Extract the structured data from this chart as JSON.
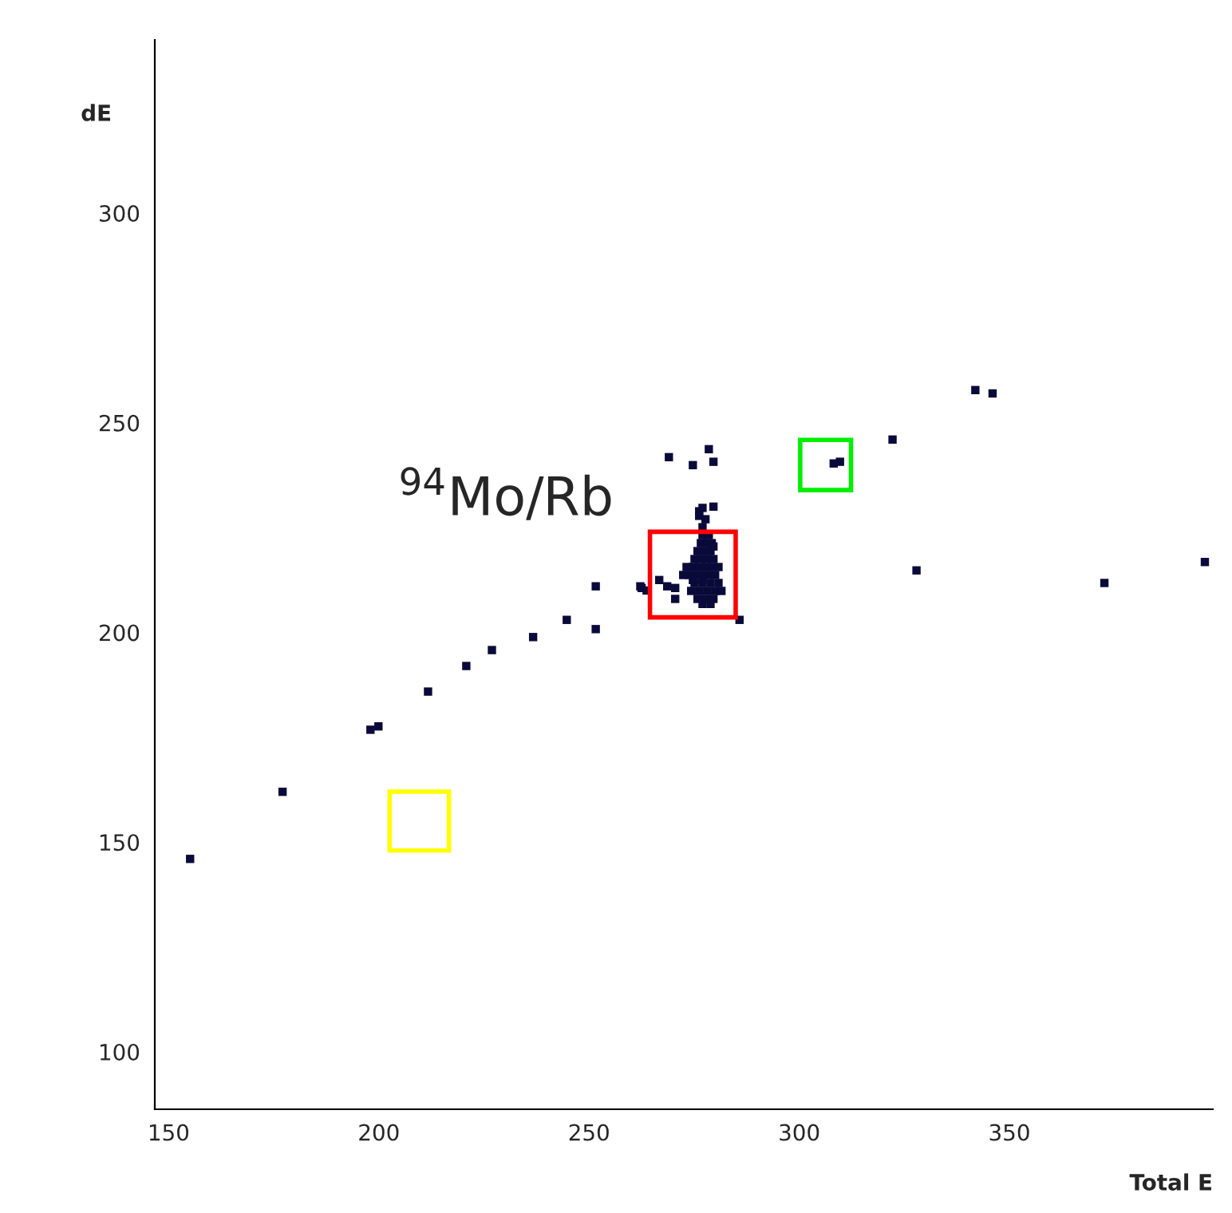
{
  "chart_data": {
    "type": "scatter",
    "xlabel": "Total E",
    "ylabel": "dE",
    "xlim": [
      146.7,
      398.4
    ],
    "ylim": [
      86.3,
      341.3
    ],
    "xticks": [
      150,
      200,
      250,
      300,
      350
    ],
    "yticks": [
      100,
      150,
      200,
      250,
      300
    ],
    "grid": false,
    "marker": "square",
    "annotations": [
      "$^{94}$Mo/Rb"
    ],
    "series": [
      {
        "color": "#0a0a3a",
        "x": [
          155.1,
          177.1,
          198.0,
          199.9,
          211.7,
          220.8,
          226.9,
          236.7,
          244.7,
          251.6,
          251.6,
          262.2,
          262.5,
          263.7,
          269.0,
          274.7,
          278.5,
          279.6,
          285.8,
          308.2,
          309.7,
          322.2,
          327.9,
          341.9,
          346.0,
          372.6,
          396.5,
          276.2,
          277.0,
          279.6,
          276.2,
          277.7,
          277.0,
          266.7,
          268.6,
          270.5,
          270.5,
          279.6,
          277.0,
          278.5,
          276.6,
          278.1,
          279.2,
          275.8,
          277.4,
          278.9,
          275.1,
          276.6,
          278.1,
          279.6,
          273.2,
          274.7,
          276.2,
          277.7,
          279.2,
          280.8,
          272.4,
          273.9,
          275.4,
          277.0,
          278.5,
          280.0,
          274.7,
          277.0,
          275.1,
          277.0,
          278.9,
          280.8,
          274.3,
          276.2,
          278.1,
          280.0,
          281.5,
          275.8,
          277.7,
          279.6,
          277.0,
          278.9
        ],
        "values": [
          146.0,
          162.0,
          176.8,
          177.6,
          185.9,
          192.0,
          195.8,
          198.9,
          203.0,
          211.0,
          200.8,
          211.0,
          210.6,
          210.0,
          241.8,
          239.9,
          243.7,
          240.7,
          203.0,
          240.3,
          240.7,
          246.0,
          214.8,
          257.8,
          257.0,
          211.8,
          216.8,
          228.9,
          229.7,
          230.0,
          227.8,
          227.0,
          225.1,
          212.5,
          211.0,
          208.0,
          210.6,
          220.5,
          223.2,
          223.2,
          221.3,
          221.3,
          221.3,
          219.4,
          219.4,
          219.4,
          217.5,
          217.5,
          217.5,
          217.5,
          215.6,
          215.6,
          215.6,
          215.6,
          215.6,
          215.6,
          213.7,
          213.7,
          213.7,
          213.7,
          213.7,
          213.7,
          212.5,
          212.5,
          211.8,
          211.8,
          211.8,
          211.8,
          209.9,
          209.9,
          209.9,
          209.9,
          209.9,
          208.0,
          208.0,
          208.0,
          206.8,
          206.8
        ]
      }
    ]
  }
}
